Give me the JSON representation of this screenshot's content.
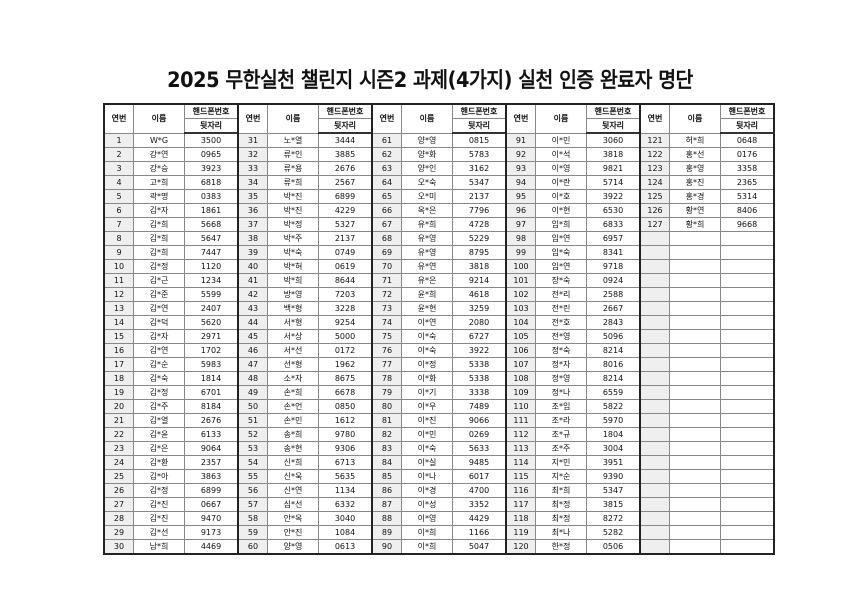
{
  "title": "2025 무한실천 챌린지 시즌2 과제(4가지) 실천 인증 완료자 명단",
  "headers": {
    "no": "연번",
    "name": "이름",
    "phone_line1": "핸드폰번호",
    "phone_line2": "뒷자리"
  },
  "entries": [
    [
      "1",
      "W*G",
      "3500"
    ],
    [
      "2",
      "강*연",
      "0965"
    ],
    [
      "3",
      "강*승",
      "3923"
    ],
    [
      "4",
      "고*희",
      "6818"
    ],
    [
      "5",
      "곽*명",
      "0383"
    ],
    [
      "6",
      "김*자",
      "1861"
    ],
    [
      "7",
      "김*희",
      "5668"
    ],
    [
      "8",
      "김*희",
      "5647"
    ],
    [
      "9",
      "김*희",
      "7447"
    ],
    [
      "10",
      "김*정",
      "1120"
    ],
    [
      "11",
      "김*근",
      "1234"
    ],
    [
      "12",
      "김*준",
      "5599"
    ],
    [
      "13",
      "김*연",
      "2407"
    ],
    [
      "14",
      "김*덕",
      "5620"
    ],
    [
      "15",
      "김*자",
      "2971"
    ],
    [
      "16",
      "김*연",
      "1702"
    ],
    [
      "17",
      "김*순",
      "5983"
    ],
    [
      "18",
      "김*숙",
      "1814"
    ],
    [
      "19",
      "김*정",
      "6701"
    ],
    [
      "20",
      "김*주",
      "8184"
    ],
    [
      "21",
      "김*열",
      "2676"
    ],
    [
      "22",
      "김*윤",
      "6133"
    ],
    [
      "23",
      "김*은",
      "9064"
    ],
    [
      "24",
      "김*환",
      "2357"
    ],
    [
      "25",
      "김*아",
      "3863"
    ],
    [
      "26",
      "김*정",
      "6899"
    ],
    [
      "27",
      "김*진",
      "0667"
    ],
    [
      "28",
      "김*진",
      "9470"
    ],
    [
      "29",
      "김*선",
      "9173"
    ],
    [
      "30",
      "남*희",
      "4469"
    ],
    [
      "31",
      "노*열",
      "3444"
    ],
    [
      "32",
      "류*인",
      "3885"
    ],
    [
      "33",
      "류*용",
      "2676"
    ],
    [
      "34",
      "류*희",
      "2567"
    ],
    [
      "35",
      "박*진",
      "6899"
    ],
    [
      "36",
      "박*진",
      "4229"
    ],
    [
      "37",
      "박*정",
      "5327"
    ],
    [
      "38",
      "박*주",
      "2137"
    ],
    [
      "39",
      "박*숙",
      "0749"
    ],
    [
      "40",
      "박*혀",
      "0619"
    ],
    [
      "41",
      "박*희",
      "8644"
    ],
    [
      "42",
      "방*영",
      "7203"
    ],
    [
      "43",
      "백*형",
      "3228"
    ],
    [
      "44",
      "서*형",
      "9254"
    ],
    [
      "45",
      "서*상",
      "5000"
    ],
    [
      "46",
      "서*선",
      "0172"
    ],
    [
      "47",
      "선*형",
      "1962"
    ],
    [
      "48",
      "소*자",
      "8675"
    ],
    [
      "49",
      "손*희",
      "6678"
    ],
    [
      "50",
      "손*언",
      "0850"
    ],
    [
      "51",
      "손*민",
      "1612"
    ],
    [
      "52",
      "송*희",
      "9780"
    ],
    [
      "53",
      "송*현",
      "9306"
    ],
    [
      "54",
      "신*희",
      "6713"
    ],
    [
      "55",
      "신*욱",
      "5635"
    ],
    [
      "56",
      "신*연",
      "1134"
    ],
    [
      "57",
      "심*선",
      "6332"
    ],
    [
      "58",
      "안*옥",
      "3040"
    ],
    [
      "59",
      "안*진",
      "1084"
    ],
    [
      "60",
      "양*영",
      "0613"
    ],
    [
      "61",
      "양*영",
      "0815"
    ],
    [
      "62",
      "양*화",
      "5783"
    ],
    [
      "63",
      "양*인",
      "3162"
    ],
    [
      "64",
      "오*숙",
      "5347"
    ],
    [
      "65",
      "오*미",
      "2137"
    ],
    [
      "66",
      "옥*은",
      "7796"
    ],
    [
      "67",
      "유*희",
      "4728"
    ],
    [
      "68",
      "유*영",
      "5229"
    ],
    [
      "69",
      "유*영",
      "8795"
    ],
    [
      "70",
      "유*연",
      "3818"
    ],
    [
      "71",
      "유*은",
      "9214"
    ],
    [
      "72",
      "윤*희",
      "4618"
    ],
    [
      "73",
      "윤*현",
      "3259"
    ],
    [
      "74",
      "이*연",
      "2080"
    ],
    [
      "75",
      "이*숙",
      "6727"
    ],
    [
      "76",
      "이*숙",
      "3922"
    ],
    [
      "77",
      "이*정",
      "5338"
    ],
    [
      "78",
      "이*화",
      "5338"
    ],
    [
      "79",
      "이*기",
      "3338"
    ],
    [
      "80",
      "이*우",
      "7489"
    ],
    [
      "81",
      "이*진",
      "9066"
    ],
    [
      "82",
      "이*민",
      "0269"
    ],
    [
      "83",
      "이*숙",
      "5633"
    ],
    [
      "84",
      "이*실",
      "9485"
    ],
    [
      "85",
      "이*나",
      "6017"
    ],
    [
      "86",
      "이*경",
      "4700"
    ],
    [
      "87",
      "이*성",
      "3352"
    ],
    [
      "88",
      "이*영",
      "4429"
    ],
    [
      "89",
      "이*희",
      "1166"
    ],
    [
      "90",
      "이*희",
      "5047"
    ],
    [
      "91",
      "이*민",
      "3060"
    ],
    [
      "92",
      "이*석",
      "3818"
    ],
    [
      "93",
      "이*영",
      "9821"
    ],
    [
      "94",
      "이*란",
      "5714"
    ],
    [
      "95",
      "이*호",
      "3922"
    ],
    [
      "96",
      "이*현",
      "6530"
    ],
    [
      "97",
      "임*희",
      "6833"
    ],
    [
      "98",
      "임*연",
      "6957"
    ],
    [
      "99",
      "임*숙",
      "8341"
    ],
    [
      "100",
      "임*연",
      "9718"
    ],
    [
      "101",
      "장*숙",
      "0924"
    ],
    [
      "102",
      "전*리",
      "2588"
    ],
    [
      "103",
      "전*린",
      "2667"
    ],
    [
      "104",
      "전*호",
      "2843"
    ],
    [
      "105",
      "전*영",
      "5096"
    ],
    [
      "106",
      "정*숙",
      "8214"
    ],
    [
      "107",
      "정*자",
      "8016"
    ],
    [
      "108",
      "정*영",
      "8214"
    ],
    [
      "109",
      "정*나",
      "6559"
    ],
    [
      "110",
      "조*임",
      "5822"
    ],
    [
      "111",
      "조*라",
      "5970"
    ],
    [
      "112",
      "조*규",
      "1804"
    ],
    [
      "113",
      "조*주",
      "3004"
    ],
    [
      "114",
      "지*민",
      "3951"
    ],
    [
      "115",
      "지*순",
      "9390"
    ],
    [
      "116",
      "최*희",
      "5347"
    ],
    [
      "117",
      "최*정",
      "3815"
    ],
    [
      "118",
      "최*정",
      "8272"
    ],
    [
      "119",
      "최*나",
      "5282"
    ],
    [
      "120",
      "한*정",
      "0506"
    ],
    [
      "121",
      "허*희",
      "0648"
    ],
    [
      "122",
      "홍*선",
      "0176"
    ],
    [
      "123",
      "홍*영",
      "3358"
    ],
    [
      "124",
      "홍*진",
      "2365"
    ],
    [
      "125",
      "홍*경",
      "5314"
    ],
    [
      "126",
      "황*연",
      "8406"
    ],
    [
      "127",
      "황*희",
      "9668"
    ]
  ]
}
